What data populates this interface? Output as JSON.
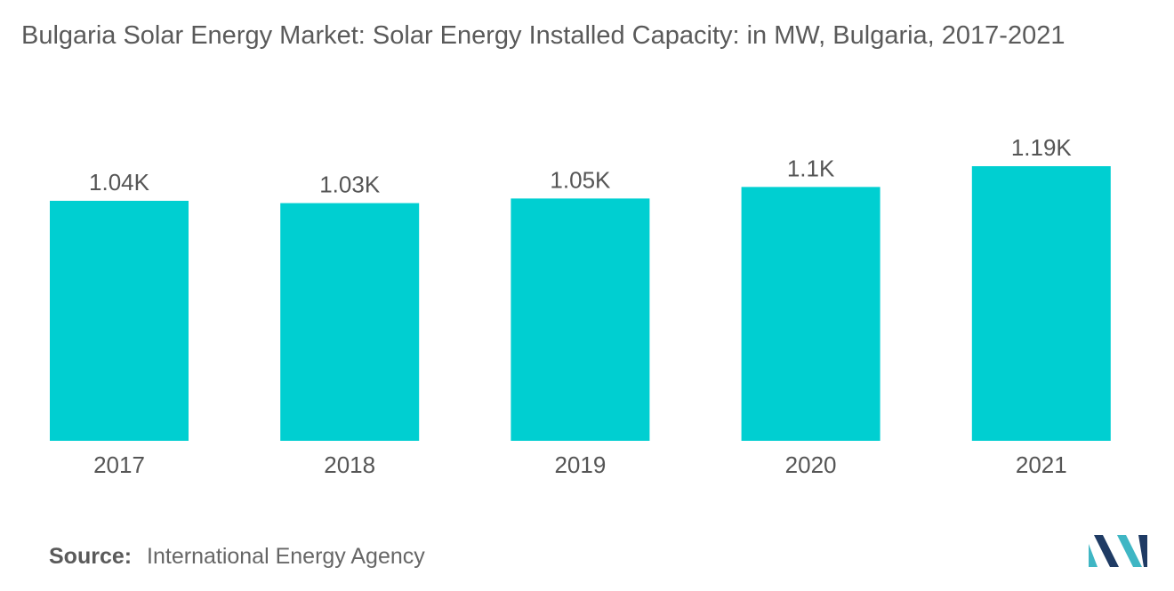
{
  "title": "Bulgaria Solar Energy Market: Solar Energy Installed Capacity: in MW, Bulgaria, 2017-2021",
  "source": {
    "label": "Source:",
    "text": "International Energy Agency"
  },
  "colors": {
    "bar": "#00cfd1",
    "text": "#555555",
    "logo_dark": "#1f3b64",
    "logo_light": "#3fb6c4"
  },
  "logo": {
    "icon": "mordor-intelligence-logo"
  },
  "chart_data": {
    "type": "bar",
    "categories": [
      "2017",
      "2018",
      "2019",
      "2020",
      "2021"
    ],
    "values": [
      1040,
      1030,
      1050,
      1100,
      1190
    ],
    "value_labels": [
      "1.04K",
      "1.03K",
      "1.05K",
      "1.1K",
      "1.19K"
    ],
    "xlabel": "",
    "ylabel": "",
    "ylim": [
      0,
      1190
    ],
    "grid": false,
    "legend": "none"
  }
}
